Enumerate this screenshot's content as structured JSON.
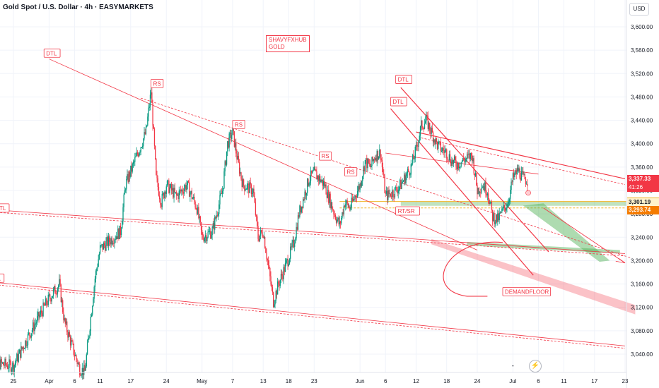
{
  "header": {
    "title": "Gold Spot / U.S. Dollar · 4h · EASYMARKETS",
    "currency": "USD"
  },
  "watermark": {
    "line1": "SHAVYFXHUB",
    "line2": "GOLD"
  },
  "price_tags": {
    "last": "3,337.33",
    "timer": "41:26",
    "support_top": "3,301.19",
    "support_bottom": "3,293.74"
  },
  "icons": {
    "replay": "lightning-icon"
  },
  "colors": {
    "up": "#089981",
    "down": "#f23645",
    "trend": "#f23645",
    "zone_green": "#4caf50",
    "zone_red": "#f23645",
    "zone_yellow": "#f0b429",
    "axis_text": "#131722",
    "grid": "#f0f3fa"
  },
  "chart_data": {
    "type": "candlestick",
    "title": "Gold Spot / U.S. Dollar · 4h · EASYMARKETS",
    "y_range": [
      3010,
      3630
    ],
    "y_ticks": [
      3040,
      3080,
      3120,
      3160,
      3200,
      3240,
      3280,
      3320,
      3360,
      3400,
      3440,
      3480,
      3520,
      3560,
      3600
    ],
    "y_tick_labels": [
      "3,040.00",
      "3,080.00",
      "3,120.00",
      "3,160.00",
      "3,200.00",
      "3,240.00",
      "3,280.00",
      "3,320.00",
      "3,360.00",
      "3,400.00",
      "3,440.00",
      "3,480.00",
      "3,520.00",
      "3,560.00",
      "3,600.00"
    ],
    "x_ticks": [
      {
        "label": "25",
        "date": "2025-03-25"
      },
      {
        "label": "Apr",
        "date": "2025-04-01"
      },
      {
        "label": "6",
        "date": "2025-04-06"
      },
      {
        "label": "11",
        "date": "2025-04-11"
      },
      {
        "label": "17",
        "date": "2025-04-17"
      },
      {
        "label": "24",
        "date": "2025-04-24"
      },
      {
        "label": "May",
        "date": "2025-05-01"
      },
      {
        "label": "7",
        "date": "2025-05-07"
      },
      {
        "label": "13",
        "date": "2025-05-13"
      },
      {
        "label": "18",
        "date": "2025-05-18"
      },
      {
        "label": "23",
        "date": "2025-05-23"
      },
      {
        "label": "Jun",
        "date": "2025-06-01"
      },
      {
        "label": "6",
        "date": "2025-06-06"
      },
      {
        "label": "12",
        "date": "2025-06-12"
      },
      {
        "label": "18",
        "date": "2025-06-18"
      },
      {
        "label": "24",
        "date": "2025-06-24"
      },
      {
        "label": "Jul",
        "date": "2025-07-01"
      },
      {
        "label": "6",
        "date": "2025-07-06"
      },
      {
        "label": "11",
        "date": "2025-07-11"
      },
      {
        "label": "17",
        "date": "2025-07-17"
      },
      {
        "label": "23",
        "date": "2025-07-23"
      }
    ],
    "closes": [
      {
        "date": "2025-03-20",
        "close": 3030
      },
      {
        "date": "2025-03-23",
        "close": 3022
      },
      {
        "date": "2025-03-25",
        "close": 3020
      },
      {
        "date": "2025-03-28",
        "close": 3072
      },
      {
        "date": "2025-03-31",
        "close": 3120
      },
      {
        "date": "2025-04-01",
        "close": 3135
      },
      {
        "date": "2025-04-03",
        "close": 3160
      },
      {
        "date": "2025-04-04",
        "close": 3095
      },
      {
        "date": "2025-04-06",
        "close": 3040
      },
      {
        "date": "2025-04-07",
        "close": 3015
      },
      {
        "date": "2025-04-08",
        "close": 3010
      },
      {
        "date": "2025-04-09",
        "close": 3090
      },
      {
        "date": "2025-04-10",
        "close": 3170
      },
      {
        "date": "2025-04-11",
        "close": 3220
      },
      {
        "date": "2025-04-13",
        "close": 3235
      },
      {
        "date": "2025-04-15",
        "close": 3250
      },
      {
        "date": "2025-04-16",
        "close": 3330
      },
      {
        "date": "2025-04-18",
        "close": 3375
      },
      {
        "date": "2025-04-20",
        "close": 3420
      },
      {
        "date": "2025-04-21",
        "close": 3490
      },
      {
        "date": "2025-04-22",
        "close": 3340
      },
      {
        "date": "2025-04-23",
        "close": 3300
      },
      {
        "date": "2025-04-24",
        "close": 3330
      },
      {
        "date": "2025-04-26",
        "close": 3310
      },
      {
        "date": "2025-04-28",
        "close": 3330
      },
      {
        "date": "2025-04-30",
        "close": 3290
      },
      {
        "date": "2025-05-01",
        "close": 3240
      },
      {
        "date": "2025-05-03",
        "close": 3250
      },
      {
        "date": "2025-05-05",
        "close": 3320
      },
      {
        "date": "2025-05-06",
        "close": 3400
      },
      {
        "date": "2025-05-07",
        "close": 3420
      },
      {
        "date": "2025-05-08",
        "close": 3370
      },
      {
        "date": "2025-05-09",
        "close": 3330
      },
      {
        "date": "2025-05-11",
        "close": 3320
      },
      {
        "date": "2025-05-12",
        "close": 3240
      },
      {
        "date": "2025-05-13",
        "close": 3250
      },
      {
        "date": "2025-05-14",
        "close": 3190
      },
      {
        "date": "2025-05-15",
        "close": 3130
      },
      {
        "date": "2025-05-16",
        "close": 3160
      },
      {
        "date": "2025-05-18",
        "close": 3205
      },
      {
        "date": "2025-05-19",
        "close": 3230
      },
      {
        "date": "2025-05-20",
        "close": 3280
      },
      {
        "date": "2025-05-21",
        "close": 3310
      },
      {
        "date": "2025-05-22",
        "close": 3340
      },
      {
        "date": "2025-05-23",
        "close": 3350
      },
      {
        "date": "2025-05-25",
        "close": 3330
      },
      {
        "date": "2025-05-27",
        "close": 3280
      },
      {
        "date": "2025-05-28",
        "close": 3260
      },
      {
        "date": "2025-05-29",
        "close": 3300
      },
      {
        "date": "2025-05-30",
        "close": 3290
      },
      {
        "date": "2025-06-01",
        "close": 3330
      },
      {
        "date": "2025-06-02",
        "close": 3370
      },
      {
        "date": "2025-06-03",
        "close": 3360
      },
      {
        "date": "2025-06-04",
        "close": 3380
      },
      {
        "date": "2025-06-05",
        "close": 3385
      },
      {
        "date": "2025-06-06",
        "close": 3310
      },
      {
        "date": "2025-06-08",
        "close": 3320
      },
      {
        "date": "2025-06-09",
        "close": 3330
      },
      {
        "date": "2025-06-10",
        "close": 3345
      },
      {
        "date": "2025-06-11",
        "close": 3360
      },
      {
        "date": "2025-06-12",
        "close": 3390
      },
      {
        "date": "2025-06-13",
        "close": 3430
      },
      {
        "date": "2025-06-14",
        "close": 3440
      },
      {
        "date": "2025-06-16",
        "close": 3400
      },
      {
        "date": "2025-06-17",
        "close": 3390
      },
      {
        "date": "2025-06-18",
        "close": 3385
      },
      {
        "date": "2025-06-19",
        "close": 3370
      },
      {
        "date": "2025-06-20",
        "close": 3365
      },
      {
        "date": "2025-06-21",
        "close": 3370
      },
      {
        "date": "2025-06-23",
        "close": 3380
      },
      {
        "date": "2025-06-24",
        "close": 3320
      },
      {
        "date": "2025-06-25",
        "close": 3330
      },
      {
        "date": "2025-06-26",
        "close": 3320
      },
      {
        "date": "2025-06-27",
        "close": 3275
      },
      {
        "date": "2025-06-28",
        "close": 3270
      },
      {
        "date": "2025-06-30",
        "close": 3300
      },
      {
        "date": "2025-07-01",
        "close": 3340
      },
      {
        "date": "2025-07-02",
        "close": 3355
      },
      {
        "date": "2025-07-03",
        "close": 3340
      },
      {
        "date": "2025-07-04",
        "close": 3337.33
      }
    ],
    "annotations": [
      {
        "text": "DTL",
        "date": "2025-03-31",
        "price": 3555
      },
      {
        "text": "DTL",
        "date": "2025-03-21",
        "price": 3290
      },
      {
        "text": "DTL",
        "date": "2025-03-20",
        "price": 3170
      },
      {
        "text": "RS",
        "date": "2025-04-21",
        "price": 3503
      },
      {
        "text": "RS",
        "date": "2025-05-07",
        "price": 3433
      },
      {
        "text": "RS",
        "date": "2025-05-24",
        "price": 3379
      },
      {
        "text": "RS",
        "date": "2025-05-29",
        "price": 3352
      },
      {
        "text": "RT/SR",
        "date": "2025-06-08",
        "price": 3285
      },
      {
        "text": "DTL",
        "date": "2025-06-08",
        "price": 3510
      },
      {
        "text": "DTL",
        "date": "2025-06-07",
        "price": 3472
      },
      {
        "text": "DEMANDFLOOR",
        "date": "2025-06-29",
        "price": 3147
      }
    ],
    "last_price": 3337.33,
    "support_zone": [
      3293.74,
      3301.19
    ]
  }
}
